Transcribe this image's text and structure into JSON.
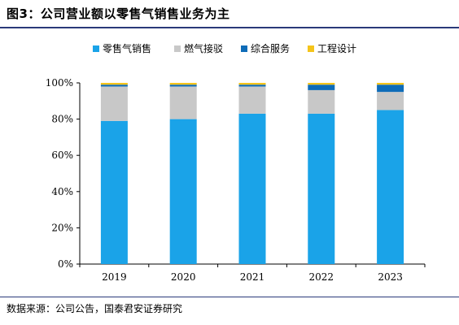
{
  "title": "图3：公司营业额以零售气销售业务为主",
  "source": "数据来源：公司公告，国泰君安证券研究",
  "chart_data": {
    "type": "bar",
    "stacked": true,
    "categories": [
      "2019",
      "2020",
      "2021",
      "2022",
      "2023"
    ],
    "ylim": [
      0,
      100
    ],
    "yticks": [
      "0%",
      "20%",
      "40%",
      "60%",
      "80%",
      "100%"
    ],
    "grid": false,
    "legend_position": "top",
    "series": [
      {
        "name": "零售气销售",
        "color": "#1aa3e8",
        "values": [
          79,
          80,
          83,
          83,
          85
        ]
      },
      {
        "name": "燃气接驳",
        "color": "#c8c8c8",
        "values": [
          19,
          18,
          15,
          13,
          10
        ]
      },
      {
        "name": "综合服务",
        "color": "#0e6cb8",
        "values": [
          1,
          1,
          1,
          3,
          4
        ]
      },
      {
        "name": "工程设计",
        "color": "#f5c41a",
        "values": [
          1,
          1,
          1,
          1,
          1
        ]
      }
    ]
  }
}
